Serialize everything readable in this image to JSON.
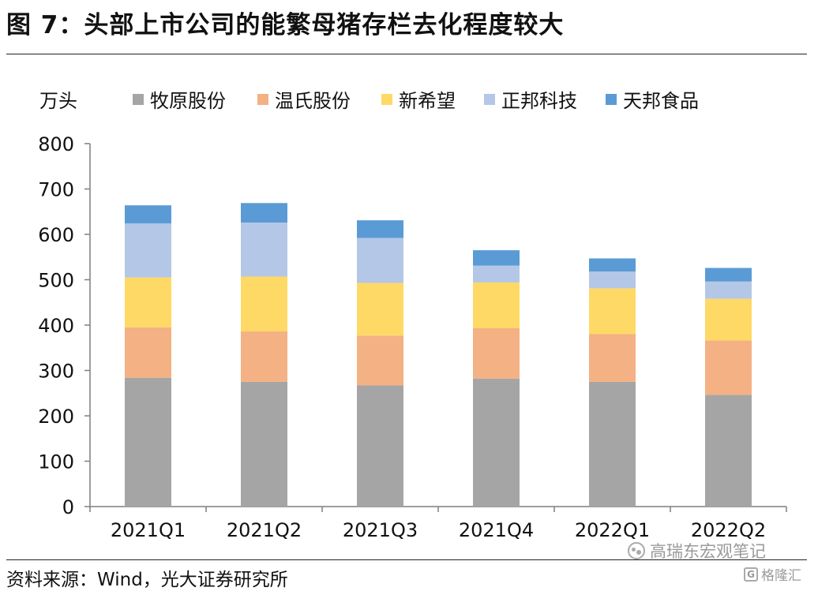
{
  "figure": {
    "title": "图 7：头部上市公司的能繁母猪存栏去化程度较大",
    "source": "资料来源：Wind，光大证券研究所",
    "watermark": "高瑞东宏观笔记",
    "watermark_badge": "格隆汇",
    "watermark_icon": "wechat-icon",
    "watermark_badge_icon": "g-logo-icon"
  },
  "chart_data": {
    "type": "bar",
    "stacked": true,
    "unit_label": "万头",
    "categories": [
      "2021Q1",
      "2021Q2",
      "2021Q3",
      "2021Q4",
      "2022Q1",
      "2022Q2"
    ],
    "series": [
      {
        "name": "牧原股份",
        "color": "#a5a5a5",
        "values": [
          284,
          275,
          267,
          282,
          275,
          246
        ]
      },
      {
        "name": "温氏股份",
        "color": "#f4b183",
        "values": [
          111,
          111,
          110,
          111,
          105,
          120
        ]
      },
      {
        "name": "新希望",
        "color": "#ffd966",
        "values": [
          110,
          121,
          116,
          101,
          101,
          92
        ]
      },
      {
        "name": "正邦科技",
        "color": "#b4c7e7",
        "values": [
          119,
          119,
          99,
          37,
          37,
          38
        ]
      },
      {
        "name": "天邦食品",
        "color": "#5b9bd5",
        "values": [
          40,
          43,
          39,
          34,
          29,
          30
        ]
      }
    ],
    "ylim": [
      0,
      800
    ],
    "yticks": [
      0,
      100,
      200,
      300,
      400,
      500,
      600,
      700,
      800
    ],
    "legend_position": "top",
    "grid": false
  }
}
